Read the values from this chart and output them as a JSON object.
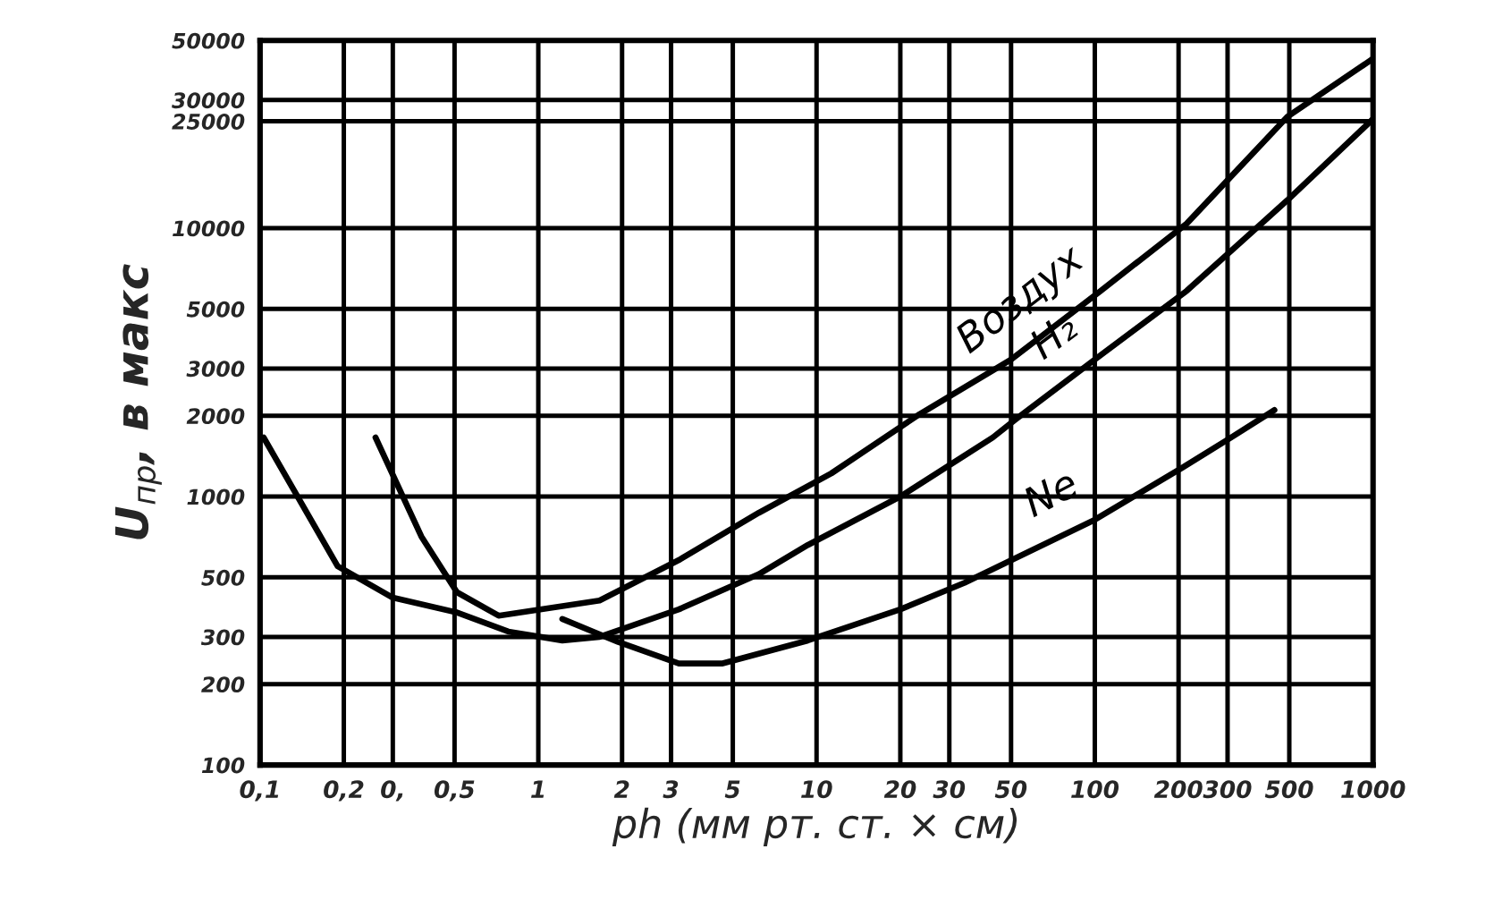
{
  "chart_data": {
    "type": "line",
    "xlabel": "ph (мм рт. ст. × см)",
    "ylabel": "U$_{пр}$, в макс",
    "log": "xy",
    "grid": true,
    "xlim": [
      0.1,
      1000
    ],
    "ylim": [
      100,
      50000
    ],
    "xticks": [
      {
        "value": 0.1,
        "label": "0,1"
      },
      {
        "value": 0.2,
        "label": "0,2"
      },
      {
        "value": 0.3,
        "label": "0,"
      },
      {
        "value": 0.5,
        "label": "0,5"
      },
      1,
      2,
      3,
      5,
      10,
      20,
      30,
      50,
      100,
      200,
      300,
      500,
      1000
    ],
    "yticks": [
      100,
      200,
      300,
      500,
      1000,
      2000,
      3000,
      5000,
      10000,
      25000,
      30000,
      50000
    ],
    "series": [
      {
        "name": "Воздух",
        "color": "#000000",
        "x": [
          0.26,
          0.38,
          0.51,
          0.72,
          1.66,
          3.2,
          6.2,
          11.3,
          23.5,
          50,
          105,
          214,
          492,
          1000
        ],
        "values": [
          1660,
          710,
          440,
          360,
          410,
          580,
          870,
          1220,
          2030,
          3240,
          5840,
          10400,
          26000,
          42800
        ]
      },
      {
        "name": "H₂",
        "color": "#000000",
        "x": [
          0.103,
          0.19,
          0.3,
          0.51,
          0.78,
          1.22,
          1.66,
          3.2,
          6.2,
          9.3,
          20,
          43,
          52,
          100,
          214,
          492,
          1000
        ],
        "values": [
          1660,
          550,
          420,
          370,
          314,
          291,
          300,
          380,
          514,
          660,
          1000,
          1660,
          1940,
          3240,
          5840,
          12700,
          25500
        ]
      },
      {
        "name": "Ne",
        "color": "#000000",
        "x": [
          1.22,
          1.94,
          3.2,
          4.6,
          9.3,
          20,
          34,
          100,
          206,
          309,
          442
        ],
        "values": [
          350,
          287,
          239,
          239,
          291,
          380,
          477,
          820,
          1280,
          1660,
          2100
        ]
      }
    ]
  }
}
